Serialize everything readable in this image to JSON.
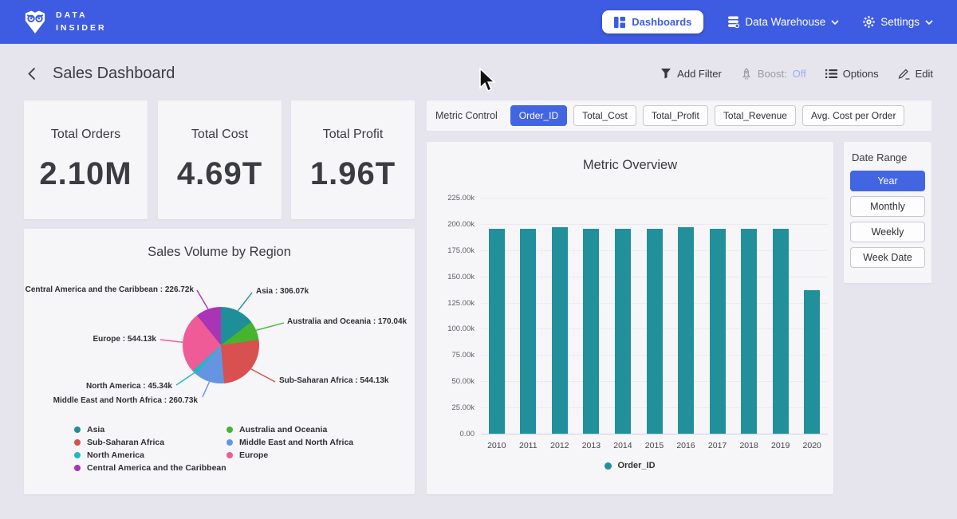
{
  "colors": {
    "nav": "#3e5ce2",
    "accent": "#4265e2",
    "bar": "#21909a"
  },
  "topnav": {
    "brand_line1": "DATA",
    "brand_line2": "INSIDER",
    "dashboards_label": "Dashboards",
    "data_warehouse_label": "Data Warehouse",
    "settings_label": "Settings"
  },
  "header": {
    "title": "Sales Dashboard",
    "add_filter_label": "Add Filter",
    "boost_label": "Boost:",
    "boost_state": "Off",
    "options_label": "Options",
    "edit_label": "Edit"
  },
  "kpis": [
    {
      "label": "Total Orders",
      "value": "2.10M"
    },
    {
      "label": "Total Cost",
      "value": "4.69T"
    },
    {
      "label": "Total Profit",
      "value": "1.96T"
    }
  ],
  "metric_control": {
    "label": "Metric Control",
    "options": [
      {
        "label": "Order_ID",
        "selected": true
      },
      {
        "label": "Total_Cost",
        "selected": false
      },
      {
        "label": "Total_Profit",
        "selected": false
      },
      {
        "label": "Total_Revenue",
        "selected": false
      },
      {
        "label": "Avg. Cost per Order",
        "selected": false
      }
    ]
  },
  "date_range": {
    "label": "Date Range",
    "options": [
      {
        "label": "Year",
        "selected": true
      },
      {
        "label": "Monthly",
        "selected": false
      },
      {
        "label": "Weekly",
        "selected": false
      },
      {
        "label": "Week Date",
        "selected": false
      }
    ]
  },
  "chart_data": [
    {
      "type": "bar",
      "title": "Metric Overview",
      "categories": [
        "2010",
        "2011",
        "2012",
        "2013",
        "2014",
        "2015",
        "2016",
        "2017",
        "2018",
        "2019",
        "2020"
      ],
      "series": [
        {
          "name": "Order_ID",
          "color": "#21909a",
          "values": [
            195500,
            195400,
            196600,
            195300,
            195200,
            195400,
            196700,
            195500,
            195300,
            195500,
            136900
          ]
        }
      ],
      "ylim": [
        0,
        225000
      ],
      "yticks": [
        {
          "value": 0,
          "label": "0.00"
        },
        {
          "value": 25000,
          "label": "25.00k"
        },
        {
          "value": 50000,
          "label": "50.00k"
        },
        {
          "value": 75000,
          "label": "75.00k"
        },
        {
          "value": 100000,
          "label": "100.00k"
        },
        {
          "value": 125000,
          "label": "125.00k"
        },
        {
          "value": 150000,
          "label": "150.00k"
        },
        {
          "value": 175000,
          "label": "175.00k"
        },
        {
          "value": 200000,
          "label": "200.00k"
        },
        {
          "value": 225000,
          "label": "225.00k"
        }
      ],
      "grid": true,
      "legend_position": "bottom"
    },
    {
      "type": "pie",
      "title": "Sales Volume by Region",
      "slices": [
        {
          "label": "Asia",
          "value": 306070,
          "display": "306.07k",
          "color": "#1e8e99"
        },
        {
          "label": "Australia and Oceania",
          "value": 170040,
          "display": "170.04k",
          "color": "#47b42f"
        },
        {
          "label": "Sub-Saharan Africa",
          "value": 544130,
          "display": "544.13k",
          "color": "#d8504f"
        },
        {
          "label": "Middle East and North Africa",
          "value": 260730,
          "display": "260.73k",
          "color": "#6595e0"
        },
        {
          "label": "North America",
          "value": 45340,
          "display": "45.34k",
          "color": "#22b6c9"
        },
        {
          "label": "Europe",
          "value": 544130,
          "display": "544.13k",
          "color": "#ef5b96"
        },
        {
          "label": "Central America and the Caribbean",
          "value": 226720,
          "display": "226.72k",
          "color": "#a935b6"
        }
      ],
      "legend_columns": [
        [
          "Asia",
          "Sub-Saharan Africa",
          "North America",
          "Central America and the Caribbean"
        ],
        [
          "Australia and Oceania",
          "Middle East and North Africa",
          "Europe"
        ]
      ],
      "legend_position": "bottom"
    }
  ]
}
